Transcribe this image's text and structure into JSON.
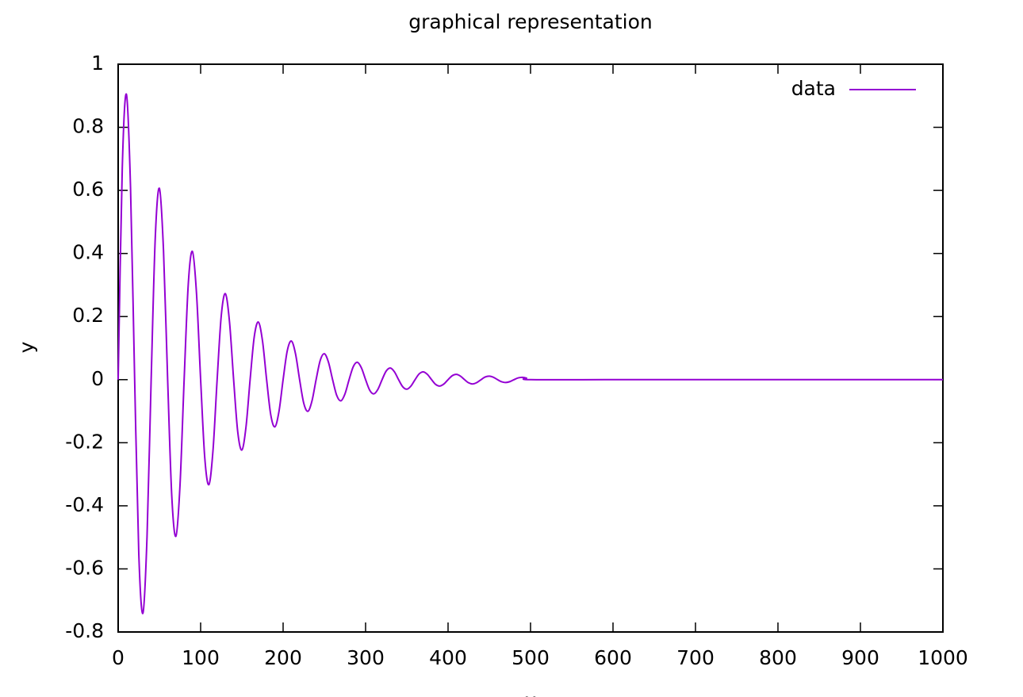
{
  "chart_data": {
    "type": "line",
    "title": "graphical representation",
    "x_label": "x",
    "y_label": "y",
    "xlim": [
      0,
      1000
    ],
    "ylim": [
      -0.8,
      1
    ],
    "xticks": [
      0,
      100,
      200,
      300,
      400,
      500,
      600,
      700,
      800,
      900,
      1000
    ],
    "yticks": [
      -0.8,
      -0.6,
      -0.4,
      -0.2,
      0,
      0.2,
      0.4,
      0.6,
      0.8,
      1
    ],
    "legend": "top-right",
    "x": [
      0,
      5,
      10,
      15,
      20,
      25,
      30,
      35,
      40,
      45,
      50,
      55,
      60,
      65,
      70,
      75,
      80,
      85,
      90,
      95,
      100,
      105,
      110,
      115,
      120,
      125,
      130,
      135,
      140,
      145,
      150,
      155,
      160,
      165,
      170,
      175,
      180,
      185,
      190,
      195,
      200,
      205,
      210,
      215,
      220,
      225,
      230,
      235,
      240,
      245,
      250,
      255,
      260,
      265,
      270,
      275,
      280,
      285,
      290,
      295,
      300,
      305,
      310,
      315,
      320,
      325,
      330,
      335,
      340,
      345,
      350,
      355,
      360,
      365,
      370,
      375,
      380,
      385,
      390,
      395,
      400,
      405,
      410,
      415,
      420,
      425,
      430,
      435,
      440,
      445,
      450,
      455,
      460,
      465,
      470,
      475,
      480,
      485,
      490,
      495,
      500,
      600,
      700,
      800,
      900,
      1000
    ],
    "series": [
      {
        "name": "data",
        "color": "#9400d3",
        "values": [
          0,
          0.6726,
          0.9048,
          0.6086,
          0,
          -0.5507,
          -0.7408,
          -0.4983,
          0,
          0.4508,
          0.6065,
          0.4079,
          0,
          -0.3691,
          -0.4966,
          -0.334,
          0,
          0.3022,
          0.4066,
          0.2734,
          0,
          -0.2474,
          -0.3329,
          -0.2239,
          0,
          0.2026,
          0.2725,
          0.1833,
          0,
          -0.1659,
          -0.2231,
          -0.15,
          0,
          0.1358,
          0.1827,
          0.1229,
          0,
          -0.1112,
          -0.1496,
          -0.1006,
          0,
          0.091,
          0.1225,
          0.0824,
          0,
          -0.0745,
          -0.1003,
          -0.0675,
          0,
          0.061,
          0.0821,
          0.0552,
          0,
          -0.05,
          -0.0672,
          -0.0452,
          0,
          0.0409,
          0.055,
          0.037,
          0,
          -0.0335,
          -0.045,
          -0.0303,
          0,
          0.0274,
          0.0369,
          0.0248,
          0,
          -0.0224,
          -0.0302,
          -0.0203,
          0,
          0.0184,
          0.0247,
          0.0166,
          0,
          -0.0151,
          -0.0202,
          -0.0136,
          0,
          0.0123,
          0.0166,
          0.0112,
          0,
          -0.0101,
          -0.0136,
          -0.0091,
          0,
          0.0083,
          0.0111,
          0.0075,
          0,
          -0.0068,
          -0.0091,
          -0.0062,
          0,
          0.0055,
          0.0074,
          0.005,
          0,
          0,
          0,
          0,
          0,
          0
        ]
      }
    ]
  }
}
